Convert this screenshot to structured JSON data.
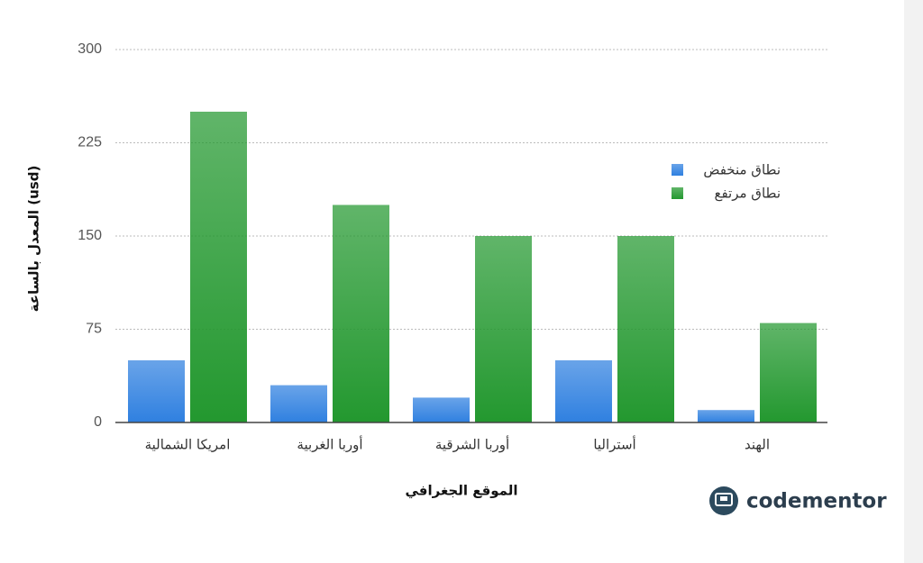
{
  "chart_data": {
    "type": "bar",
    "y_label": "المعدل بالساعة (usd)",
    "x_label": "الموقع الجغرافي",
    "categories": [
      "امريكا الشمالية",
      "أوربا الغربية",
      "أوربا الشرقية",
      "أستراليا",
      "الهند"
    ],
    "series": [
      {
        "name": "نطاق منخفض",
        "color": "#2f80e0",
        "values": [
          50,
          30,
          20,
          50,
          10
        ]
      },
      {
        "name": "نطاق مرتفع",
        "color": "#23982f",
        "values": [
          250,
          175,
          150,
          150,
          80
        ]
      }
    ],
    "ylim": [
      0,
      300
    ],
    "yticks": [
      0,
      75,
      150,
      225,
      300
    ],
    "grid": true,
    "legend": "right"
  },
  "logo": "codementor"
}
